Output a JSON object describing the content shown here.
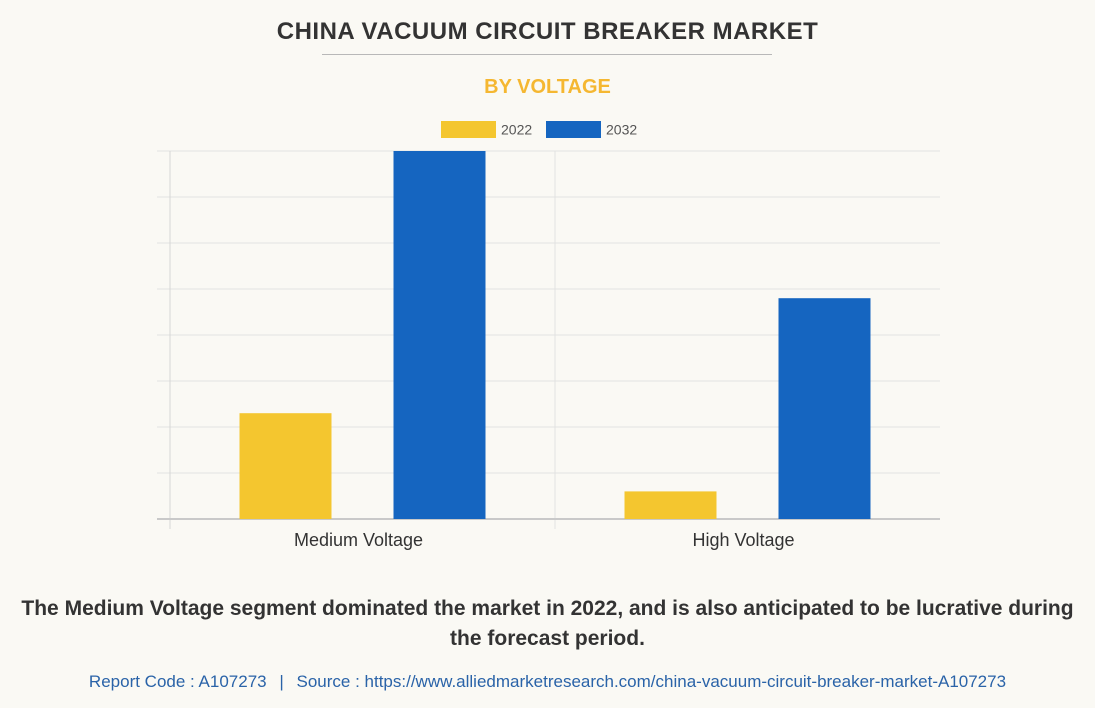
{
  "header": {
    "title": "CHINA VACUUM CIRCUIT BREAKER MARKET",
    "subtitle": "BY VOLTAGE"
  },
  "chart_data": {
    "type": "bar",
    "categories": [
      "Medium Voltage",
      "High Voltage"
    ],
    "series": [
      {
        "name": "2022",
        "color": "#f4c62f",
        "values": [
          23,
          6
        ]
      },
      {
        "name": "2032",
        "color": "#1565c0",
        "values": [
          80,
          48
        ]
      }
    ],
    "ylim": [
      0,
      80
    ],
    "grid": true,
    "legend": "top-center",
    "xlabel": "",
    "ylabel": ""
  },
  "footer": {
    "summary": "The Medium Voltage segment dominated the market in 2022, and is also anticipated to be lucrative during the forecast period.",
    "report_code": "Report Code : A107273",
    "separator": "|",
    "source": "Source : https://www.alliedmarketresearch.com/china-vacuum-circuit-breaker-market-A107273"
  }
}
